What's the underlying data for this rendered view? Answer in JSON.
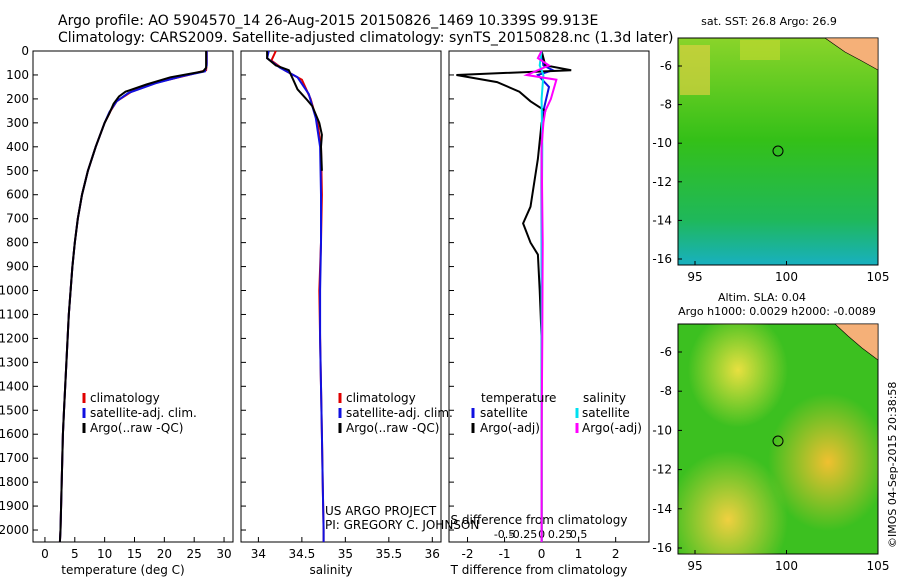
{
  "title_line1": "Argo profile: AO 5904570_14 26-Aug-2015 20150826_1469 10.339S 99.913E",
  "title_line2": "Climatology: CARS2009. Satellite-adjusted climatology: synTS_20150828.nc (1.3d later)",
  "colors": {
    "climatology": "#e00000",
    "satellite": "#1010e0",
    "argo": "#000000",
    "sat_salinity": "#00e0f0",
    "argo_salinity": "#ff00ff"
  },
  "y_axis": {
    "ticks": [
      0,
      100,
      200,
      300,
      400,
      500,
      600,
      700,
      800,
      900,
      1000,
      1100,
      1200,
      1300,
      1400,
      1500,
      1600,
      1700,
      1800,
      1900,
      2000
    ],
    "range": [
      0,
      2050
    ]
  },
  "chart_data": [
    {
      "type": "line",
      "name": "temperature",
      "xlabel": "temperature (deg C)",
      "xlim": [
        -2,
        31.5
      ],
      "xticks": [
        0,
        5,
        10,
        15,
        20,
        25,
        30
      ],
      "legend": [
        "climatology",
        "satellite-adj. clim.",
        "Argo(..raw -QC)"
      ],
      "series": [
        {
          "name": "climatology",
          "points": [
            [
              27.1,
              0
            ],
            [
              27.1,
              50
            ],
            [
              27,
              80
            ],
            [
              24,
              100
            ],
            [
              19,
              130
            ],
            [
              14.5,
              170
            ],
            [
              12,
              210
            ],
            [
              11,
              250
            ],
            [
              10,
              300
            ],
            [
              8.5,
              400
            ],
            [
              7.2,
              500
            ],
            [
              6.2,
              600
            ],
            [
              5.5,
              700
            ],
            [
              5,
              800
            ],
            [
              4.6,
              900
            ],
            [
              4.3,
              1000
            ],
            [
              4.0,
              1100
            ],
            [
              3.8,
              1200
            ],
            [
              3.6,
              1300
            ],
            [
              3.4,
              1400
            ],
            [
              3.2,
              1500
            ],
            [
              3.0,
              1600
            ],
            [
              2.9,
              1700
            ],
            [
              2.8,
              1800
            ],
            [
              2.7,
              1900
            ],
            [
              2.6,
              2000
            ],
            [
              2.5,
              2050
            ]
          ]
        },
        {
          "name": "satellite",
          "points": [
            [
              27.1,
              0
            ],
            [
              27.1,
              60
            ],
            [
              26.8,
              85
            ],
            [
              23,
              105
            ],
            [
              18.5,
              135
            ],
            [
              14,
              175
            ],
            [
              12,
              210
            ],
            [
              10.8,
              255
            ],
            [
              10,
              300
            ],
            [
              8.5,
              400
            ],
            [
              7.2,
              500
            ],
            [
              6.2,
              600
            ],
            [
              5.5,
              700
            ],
            [
              5,
              800
            ],
            [
              4.6,
              900
            ],
            [
              4.3,
              1000
            ],
            [
              4.0,
              1100
            ],
            [
              3.8,
              1200
            ],
            [
              3.6,
              1300
            ],
            [
              3.4,
              1400
            ],
            [
              3.2,
              1500
            ],
            [
              3.0,
              1600
            ],
            [
              2.9,
              1700
            ],
            [
              2.8,
              1800
            ],
            [
              2.7,
              1900
            ],
            [
              2.6,
              2000
            ],
            [
              2.5,
              2050
            ]
          ]
        },
        {
          "name": "argo",
          "points": [
            [
              27.0,
              0
            ],
            [
              27.0,
              70
            ],
            [
              26.5,
              85
            ],
            [
              21,
              110
            ],
            [
              17,
              140
            ],
            [
              13.5,
              170
            ],
            [
              12.4,
              190
            ],
            [
              11.5,
              220
            ],
            [
              10.8,
              260
            ],
            [
              10,
              300
            ],
            [
              8.5,
              400
            ],
            [
              7.2,
              500
            ],
            [
              6.2,
              600
            ],
            [
              5.5,
              700
            ],
            [
              5,
              800
            ],
            [
              4.6,
              900
            ],
            [
              4.3,
              1000
            ],
            [
              4.0,
              1100
            ],
            [
              3.8,
              1200
            ],
            [
              3.6,
              1300
            ],
            [
              3.4,
              1400
            ],
            [
              3.2,
              1500
            ],
            [
              3.0,
              1600
            ],
            [
              2.9,
              1700
            ],
            [
              2.8,
              1800
            ],
            [
              2.7,
              1900
            ],
            [
              2.6,
              2000
            ],
            [
              2.5,
              2050
            ]
          ]
        }
      ]
    },
    {
      "type": "line",
      "name": "salinity",
      "xlabel": "salinity",
      "xlim": [
        33.8,
        36.1
      ],
      "xticks": [
        34,
        34.5,
        35,
        35.5,
        36
      ],
      "legend": [
        "climatology",
        "satellite-adj. clim.",
        "Argo(..raw -QC)"
      ],
      "series": [
        {
          "name": "climatology",
          "points": [
            [
              34.2,
              0
            ],
            [
              34.15,
              40
            ],
            [
              34.3,
              80
            ],
            [
              34.5,
              120
            ],
            [
              34.6,
              200
            ],
            [
              34.68,
              300
            ],
            [
              34.72,
              400
            ],
            [
              34.73,
              600
            ],
            [
              34.72,
              800
            ],
            [
              34.7,
              1000
            ],
            [
              34.71,
              1200
            ],
            [
              34.72,
              1400
            ],
            [
              34.73,
              1600
            ],
            [
              34.74,
              1800
            ],
            [
              34.75,
              2000
            ],
            [
              34.75,
              2050
            ]
          ]
        },
        {
          "name": "satellite",
          "points": [
            [
              34.12,
              0
            ],
            [
              34.1,
              30
            ],
            [
              34.25,
              70
            ],
            [
              34.45,
              110
            ],
            [
              34.58,
              180
            ],
            [
              34.66,
              280
            ],
            [
              34.71,
              400
            ],
            [
              34.72,
              600
            ],
            [
              34.72,
              800
            ],
            [
              34.71,
              1000
            ],
            [
              34.71,
              1200
            ],
            [
              34.72,
              1400
            ],
            [
              34.73,
              1600
            ],
            [
              34.74,
              1800
            ],
            [
              34.75,
              2000
            ],
            [
              34.75,
              2050
            ]
          ]
        },
        {
          "name": "argo",
          "points": [
            [
              34.1,
              0
            ],
            [
              34.1,
              30
            ],
            [
              34.2,
              60
            ],
            [
              34.35,
              80
            ],
            [
              34.4,
              120
            ],
            [
              34.45,
              160
            ],
            [
              34.55,
              200
            ],
            [
              34.62,
              230
            ],
            [
              34.7,
              300
            ],
            [
              34.73,
              350
            ],
            [
              34.72,
              400
            ],
            [
              34.73,
              500
            ]
          ]
        }
      ],
      "annotation": [
        "US ARGO PROJECT",
        "PI: GREGORY C. JOHNSON"
      ]
    },
    {
      "type": "line",
      "name": "difference",
      "xlabel": "T difference from climatology",
      "xlabel2": "S difference from climatology",
      "xlim": [
        -2.5,
        2.9
      ],
      "xticks": [
        -2,
        -1,
        0,
        1,
        2
      ],
      "xticks_S": [
        -0.5,
        -0.25,
        0,
        0.25,
        0.5
      ],
      "legend_T": [
        "temperature",
        "satellite",
        "Argo(-adj)"
      ],
      "legend_S": [
        "salinity",
        "satellite",
        "Argo(-adj)"
      ],
      "series": [
        {
          "name": "T satellite",
          "points": [
            [
              0,
              0
            ],
            [
              0.05,
              60
            ],
            [
              0.3,
              80
            ],
            [
              -0.1,
              100
            ],
            [
              0.2,
              150
            ],
            [
              0.05,
              250
            ],
            [
              0,
              400
            ],
            [
              0,
              800
            ],
            [
              0,
              1200
            ],
            [
              0,
              1600
            ],
            [
              0,
              2050
            ]
          ]
        },
        {
          "name": "T argo",
          "points": [
            [
              0,
              0
            ],
            [
              0.1,
              60
            ],
            [
              0.8,
              80
            ],
            [
              -2.3,
              100
            ],
            [
              -1.2,
              130
            ],
            [
              -0.6,
              170
            ],
            [
              -0.3,
              210
            ],
            [
              0.1,
              250
            ],
            [
              0,
              300
            ],
            [
              -0.1,
              450
            ],
            [
              -0.3,
              650
            ],
            [
              -0.5,
              720
            ],
            [
              -0.3,
              800
            ],
            [
              -0.1,
              850
            ],
            [
              -0.05,
              1000
            ],
            [
              0,
              1200
            ],
            [
              0,
              1600
            ],
            [
              0,
              2050
            ]
          ]
        },
        {
          "name": "S satellite",
          "points": [
            [
              0,
              0
            ],
            [
              -0.05,
              60
            ],
            [
              0.05,
              100
            ],
            [
              0,
              200
            ],
            [
              0.02,
              400
            ],
            [
              0,
              800
            ],
            [
              0,
              1200
            ],
            [
              0,
              2050
            ]
          ]
        },
        {
          "name": "S argo",
          "points": [
            [
              0,
              0
            ],
            [
              -0.1,
              30
            ],
            [
              0.2,
              60
            ],
            [
              -0.4,
              100
            ],
            [
              0.4,
              120
            ],
            [
              0.25,
              200
            ],
            [
              0.1,
              250
            ],
            [
              0.05,
              300
            ],
            [
              0,
              400
            ],
            [
              0.03,
              800
            ],
            [
              0.02,
              1200
            ],
            [
              0,
              1600
            ],
            [
              0,
              2050
            ]
          ]
        }
      ]
    }
  ],
  "map1": {
    "title": "sat. SST: 26.8 Argo: 26.9",
    "yticks": [
      -6,
      -8,
      -10,
      -12,
      -14,
      -16
    ],
    "xticks": [
      95,
      100,
      105
    ]
  },
  "map2": {
    "title1": "Altim. SLA: 0.04",
    "title2": "Argo h1000: 0.0029 h2000: -0.0089",
    "yticks": [
      -6,
      -8,
      -10,
      -12,
      -14,
      -16
    ],
    "xticks": [
      95,
      100,
      105
    ]
  },
  "footer": "©IMOS 04-Sep-2015 20:38:58"
}
